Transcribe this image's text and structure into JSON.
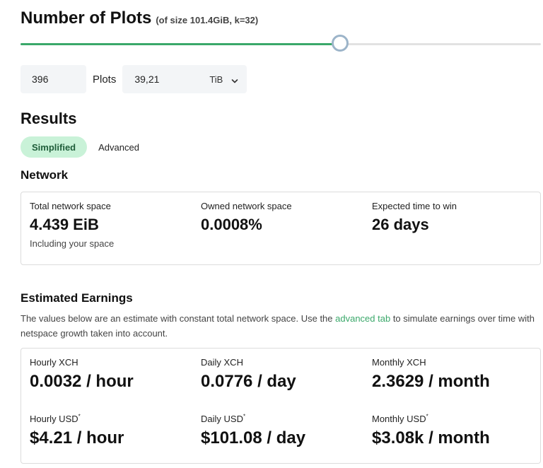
{
  "header": {
    "title": "Number of Plots",
    "subtitle": "(of size 101.4GiB, k=32)"
  },
  "slider": {
    "value_percent": 61.4
  },
  "inputs": {
    "plots_value": "396",
    "plots_label": "Plots",
    "size_value": "39,21",
    "size_unit": "TiB"
  },
  "results": {
    "title": "Results",
    "tabs": {
      "simplified": "Simplified",
      "advanced": "Advanced"
    }
  },
  "network": {
    "title": "Network",
    "total_space_label": "Total network space",
    "total_space_value": "4.439 EiB",
    "total_space_note": "Including your space",
    "owned_space_label": "Owned network space",
    "owned_space_value": "0.0008%",
    "time_to_win_label": "Expected time to win",
    "time_to_win_value": "26 days"
  },
  "earnings": {
    "title": "Estimated Earnings",
    "desc_before": "The values below are an estimate with constant total network space. Use the ",
    "desc_link": "advanced tab",
    "desc_after": " to simulate earnings over time with netspace growth taken into account.",
    "hourly_xch_label": "Hourly XCH",
    "hourly_xch_value": "0.0032 / hour",
    "daily_xch_label": "Daily XCH",
    "daily_xch_value": "0.0776 / day",
    "monthly_xch_label": "Monthly XCH",
    "monthly_xch_value": "2.3629 / month",
    "hourly_usd_label": "Hourly USD",
    "hourly_usd_value": "$4.21 / hour",
    "daily_usd_label": "Daily USD",
    "daily_usd_value": "$101.08 / day",
    "monthly_usd_label": "Monthly USD",
    "monthly_usd_value": "$3.08k / month",
    "footnote_mark": "*"
  },
  "colors": {
    "accent": "#3aa86a",
    "tab_active_bg": "#c9f2d8"
  },
  "icons": {
    "unit_dropdown": "chevron-down-icon"
  }
}
